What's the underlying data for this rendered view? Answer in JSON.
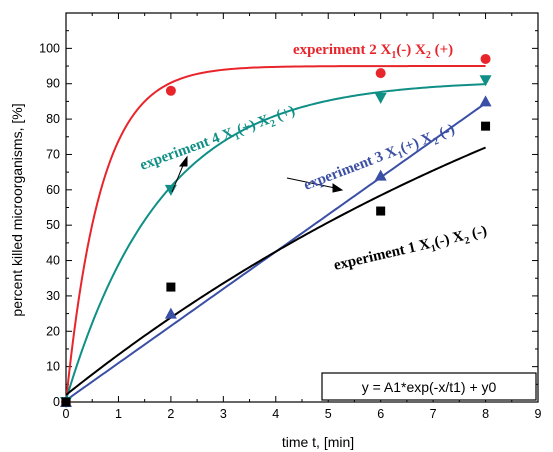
{
  "chart_data": {
    "type": "scatter",
    "xlabel": "time t, [min]",
    "ylabel": "percent killed microorganisms, [%]",
    "xlim": [
      0,
      9
    ],
    "ylim": [
      0,
      110
    ],
    "xticks": [
      0,
      1,
      2,
      3,
      4,
      5,
      6,
      7,
      8,
      9
    ],
    "yticks": [
      0,
      10,
      20,
      30,
      40,
      50,
      60,
      70,
      80,
      90,
      100
    ],
    "grid": false,
    "legend": "none",
    "formula": "y = A1*exp(-x/t1) + y0",
    "series": [
      {
        "name": "experiment 2",
        "label_parts": [
          "experiment 2 X",
          "1",
          "(-) X",
          "2",
          " (+)"
        ],
        "color": "#e8252b",
        "marker": "circle",
        "points": [
          [
            0,
            0
          ],
          [
            2,
            88
          ],
          [
            6,
            93
          ],
          [
            8,
            97
          ]
        ],
        "fit": "exp_saturation",
        "fit_params": {
          "a": 95,
          "b": 0.1,
          "k": 1.5
        }
      },
      {
        "name": "experiment 4",
        "label_parts": [
          "experiment 4 X",
          "1",
          "(+) X",
          "2",
          " (+)"
        ],
        "color": "#0f8f86",
        "marker": "triangle-down",
        "points": [
          [
            0,
            0
          ],
          [
            2,
            60
          ],
          [
            6,
            86
          ],
          [
            8,
            91
          ]
        ],
        "fit": "exp_saturation",
        "fit_params": {
          "a": 91,
          "b": 0.6,
          "k": 0.55
        }
      },
      {
        "name": "experiment 3",
        "label_parts": [
          "experiment 3 X",
          "1",
          "(+) X",
          "2",
          " (-)"
        ],
        "color": "#3b4fa6",
        "marker": "triangle-up",
        "points": [
          [
            0,
            0
          ],
          [
            2,
            25
          ],
          [
            6,
            64
          ],
          [
            8,
            85
          ]
        ],
        "fit": "linear",
        "fit_params": {
          "m": 10.5,
          "c": 0.5
        }
      },
      {
        "name": "experiment 1",
        "label_parts": [
          "experiment 1 X",
          "1",
          "(-) X",
          "2",
          " (-)"
        ],
        "color": "#000000",
        "marker": "square",
        "points": [
          [
            0,
            0
          ],
          [
            2,
            32.5
          ],
          [
            6,
            54
          ],
          [
            8,
            78
          ]
        ],
        "fit": "exp_saturation",
        "fit_params": {
          "a": 150,
          "b": 2,
          "k": 0.08
        }
      }
    ]
  }
}
